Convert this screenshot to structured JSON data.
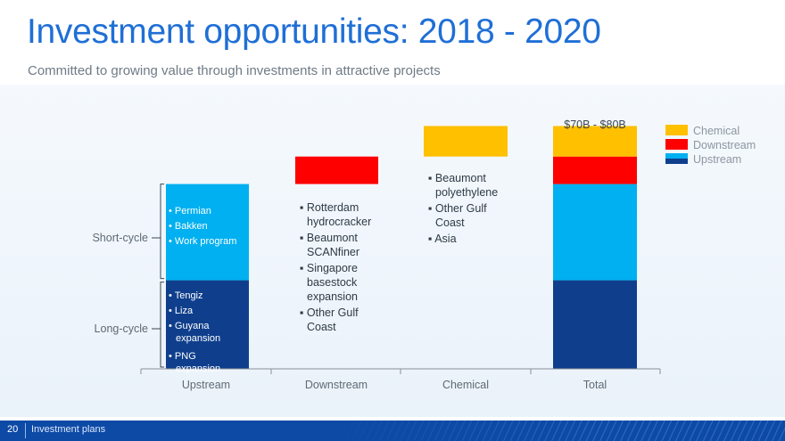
{
  "slide": {
    "title": "Investment opportunities:  2018 - 2020",
    "subtitle": "Committed to growing value through investments in attractive projects",
    "page_number": "20",
    "section": "Investment plans"
  },
  "colors": {
    "chemical": "#ffc000",
    "downstream": "#ff0000",
    "upstream_short": "#00b0f0",
    "upstream_long": "#0f3f8c",
    "axis": "#8a8f95",
    "text": "#5f6a75"
  },
  "chart_data": {
    "type": "bar",
    "style": "waterfall",
    "categories": [
      "Upstream",
      "Downstream",
      "Chemical",
      "Total"
    ],
    "series": [
      {
        "name": "Upstream",
        "values": [
          58,
          0,
          0,
          58
        ]
      },
      {
        "name": "Downstream",
        "values": [
          0,
          18,
          0,
          18
        ]
      },
      {
        "name": "Chemical",
        "values": [
          0,
          0,
          20,
          20
        ]
      }
    ],
    "upstream_split": {
      "long_cycle": 58,
      "short_cycle": 63
    },
    "ylim": [
      0,
      154
    ],
    "total_label": "$70B - $80B",
    "legend": {
      "placement": "top-right",
      "items": [
        "Chemical",
        "Downstream",
        "Upstream"
      ]
    },
    "grid": false,
    "bracket_labels": {
      "short": "Short-cycle",
      "long": "Long-cycle"
    },
    "annotations": {
      "upstream_short": [
        "Permian",
        "Bakken",
        "Work program"
      ],
      "upstream_long": [
        "Tengiz",
        "Liza",
        "Guyana expansion",
        "PNG expansion"
      ],
      "downstream": [
        "Rotterdam hydrocracker",
        "Beaumont SCANfiner",
        "Singapore basestock expansion",
        "Other Gulf Coast"
      ],
      "chemical": [
        "Beaumont polyethylene",
        "Other Gulf Coast",
        "Asia"
      ]
    }
  }
}
